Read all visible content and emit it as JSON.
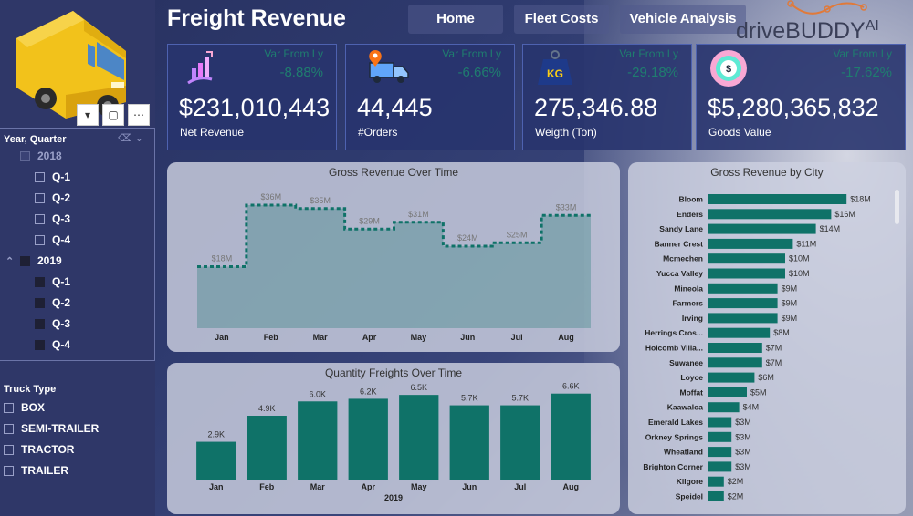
{
  "header": {
    "title": "Freight Revenue",
    "nav": [
      "Home",
      "Fleet Costs",
      "Vehicle Analysis"
    ],
    "logo_text": "driveBUDDY",
    "logo_suffix": "AI"
  },
  "left_panel": {
    "toolbar_icons": [
      "filter-icon",
      "focus-mode-icon",
      "more-options-icon"
    ],
    "year_slicer": {
      "title": "Year, Quarter",
      "years": [
        {
          "label": "2018",
          "expanded": false,
          "quarters": [
            "Q-1",
            "Q-2",
            "Q-3",
            "Q-4"
          ],
          "selected": false
        },
        {
          "label": "2019",
          "expanded": true,
          "quarters": [
            "Q-1",
            "Q-2",
            "Q-3",
            "Q-4"
          ],
          "selected": true
        }
      ]
    },
    "truck_type_slicer": {
      "title": "Truck Type",
      "items": [
        "BOX",
        "SEMI-TRAILER",
        "TRACTOR",
        "TRAILER"
      ]
    }
  },
  "kpis": [
    {
      "var_label": "Var From Ly",
      "var_value": "-8.88%",
      "value": "$231,010,443",
      "label": "Net Revenue",
      "icon": "revenue-growth-icon"
    },
    {
      "var_label": "Var From Ly",
      "var_value": "-6.66%",
      "value": "44,445",
      "label": "#Orders",
      "icon": "delivery-truck-icon"
    },
    {
      "var_label": "Var From Ly",
      "var_value": "-29.18%",
      "value": "275,346.88",
      "label": "Weigth (Ton)",
      "icon": "kg-weight-icon"
    },
    {
      "var_label": "Var From Ly",
      "var_value": "-17.62%",
      "value": "$5,280,365,832",
      "label": "Goods Value",
      "icon": "money-bag-icon"
    }
  ],
  "colors": {
    "accent": "#0f7268",
    "variance": "#1f7d6f",
    "panel": "#2f3768"
  },
  "chart_data": [
    {
      "type": "area",
      "title": "Gross Revenue Over Time",
      "categories": [
        "Jan",
        "Feb",
        "Mar",
        "Apr",
        "May",
        "Jun",
        "Jul",
        "Aug"
      ],
      "values": [
        18,
        36,
        35,
        29,
        31,
        24,
        25,
        33
      ],
      "data_labels": [
        "$18M",
        "$36M",
        "$35M",
        "$29M",
        "$31M",
        "$24M",
        "$25M",
        "$33M"
      ],
      "step": true,
      "ylim": [
        0,
        40
      ]
    },
    {
      "type": "bar",
      "title": "Quantity Freights Over Time",
      "categories": [
        "Jan",
        "Feb",
        "Mar",
        "Apr",
        "May",
        "Jun",
        "Jul",
        "Aug"
      ],
      "values": [
        2.9,
        4.9,
        6.0,
        6.2,
        6.5,
        5.7,
        5.7,
        6.6
      ],
      "data_labels": [
        "2.9K",
        "4.9K",
        "6.0K",
        "6.2K",
        "6.5K",
        "5.7K",
        "5.7K",
        "6.6K"
      ],
      "xlabel": "2019",
      "ylim": [
        0,
        7
      ]
    },
    {
      "type": "bar",
      "orientation": "horizontal",
      "title": "Gross Revenue by City",
      "categories": [
        "Bloom",
        "Enders",
        "Sandy Lane",
        "Banner Crest",
        "Mcmechen",
        "Yucca Valley",
        "Mineola",
        "Farmers",
        "Irving",
        "Herrings Cros...",
        "Holcomb Villa...",
        "Suwanee",
        "Loyce",
        "Moffat",
        "Kaawaloa",
        "Emerald Lakes",
        "Orkney Springs",
        "Wheatland",
        "Brighton Corner",
        "Kilgore",
        "Speidel"
      ],
      "values": [
        18,
        16,
        14,
        11,
        10,
        10,
        9,
        9,
        9,
        8,
        7,
        7,
        6,
        5,
        4,
        3,
        3,
        3,
        3,
        2,
        2
      ],
      "data_labels": [
        "$18M",
        "$16M",
        "$14M",
        "$11M",
        "$10M",
        "$10M",
        "$9M",
        "$9M",
        "$9M",
        "$8M",
        "$7M",
        "$7M",
        "$6M",
        "$5M",
        "$4M",
        "$3M",
        "$3M",
        "$3M",
        "$3M",
        "$2M",
        "$2M"
      ],
      "xlim": [
        0,
        20
      ]
    }
  ]
}
